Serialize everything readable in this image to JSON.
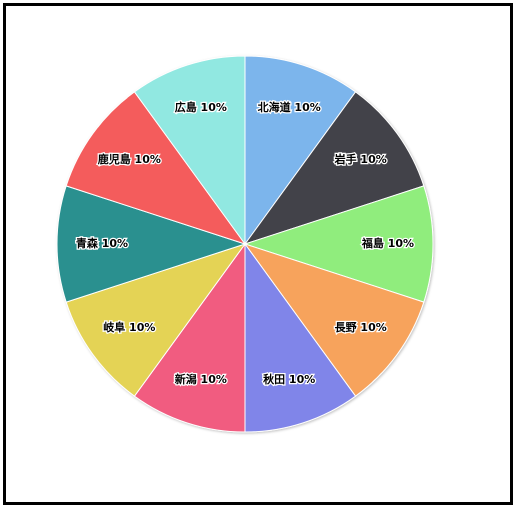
{
  "chart_data": {
    "type": "pie",
    "title": "",
    "labels": [
      "北海道",
      "岩手",
      "福島",
      "長野",
      "秋田",
      "新潟",
      "岐阜",
      "青森",
      "鹿児島",
      "広島"
    ],
    "values": [
      10,
      10,
      10,
      10,
      10,
      10,
      10,
      10,
      10,
      10
    ],
    "display_labels": [
      "北海道 10%",
      "岩手 10%",
      "福島 10%",
      "長野 10%",
      "秋田 10%",
      "新潟 10%",
      "岐阜 10%",
      "青森 10%",
      "鹿児島 10%",
      "広島 10%"
    ],
    "colors": [
      "#7cb5ec",
      "#434348",
      "#90ed7d",
      "#f7a35c",
      "#8085e9",
      "#f15c80",
      "#e4d354",
      "#2b908f",
      "#f45b5b",
      "#91e8e1"
    ],
    "start_angle": "12 o'clock",
    "direction": "clockwise",
    "legend": "none"
  }
}
